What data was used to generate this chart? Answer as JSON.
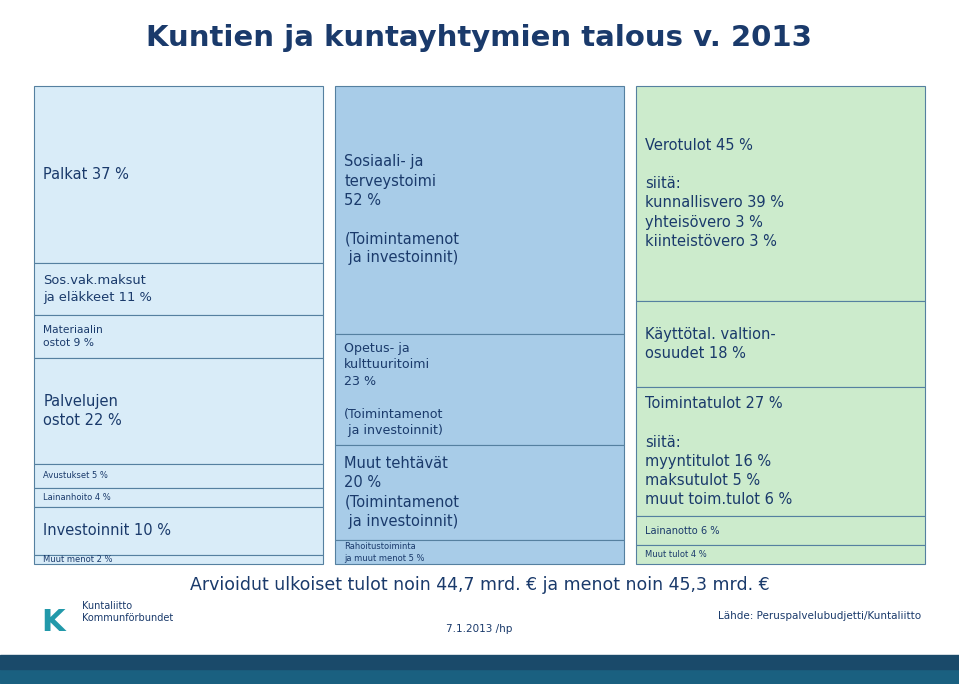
{
  "title": "Kuntien ja kuntayhtymien talous v. 2013",
  "title_color": "#1a3a6b",
  "bg_color": "#ffffff",
  "footer_text": "Arvioidut ulkoiset tulot noin 44,7 mrd. € ja menot noin 45,3 mrd. €",
  "footer_left": "Kuntaliitto\nKommunförbundet",
  "footer_center": "7.1.2013 /hp",
  "footer_right": "Lähde: Peruspalvelubudjetti/Kuntaliitto",
  "col1_color": "#d9ecf8",
  "col2_color": "#a8cce8",
  "col3_color": "#ccebcc",
  "border_color": "#5580a0",
  "text_color": "#1a3a6b",
  "bar_color": "#1a5276",
  "col1_items": [
    {
      "label": "Palkat 37 %",
      "weight": 37,
      "align": "left"
    },
    {
      "label": "Sos.vak.maksut\nja eläkkeet 11 %",
      "weight": 11,
      "align": "left"
    },
    {
      "label": "Materiaalin\nostot 9 %",
      "weight": 9,
      "align": "left"
    },
    {
      "label": "Palvelujen\nostot 22 %",
      "weight": 22,
      "align": "left"
    },
    {
      "label": "Avustukset 5 %",
      "weight": 5,
      "align": "left"
    },
    {
      "label": "Lainanhoito 4 %",
      "weight": 4,
      "align": "left"
    },
    {
      "label": "Investoinnit 10 %",
      "weight": 10,
      "align": "left"
    },
    {
      "label": "Muut menot 2 %",
      "weight": 2,
      "align": "left"
    }
  ],
  "col2_items": [
    {
      "label": "Sosiaali- ja\nterveystoimi\n52 %\n\n(Toimintamenot\n ja investoinnit)",
      "weight": 52,
      "align": "left"
    },
    {
      "label": "Opetus- ja\nkulttuuritoimi\n23 %\n\n(Toimintamenot\n ja investoinnit)",
      "weight": 23,
      "align": "left"
    },
    {
      "label": "Muut tehtävät\n20 %\n(Toimintamenot\n ja investoinnit)",
      "weight": 20,
      "align": "left"
    },
    {
      "label": "Rahoitustoiminta\nja muut menot 5 %",
      "weight": 5,
      "align": "left"
    }
  ],
  "col3_items": [
    {
      "label": "Verotulot 45 %\n\nsiitä:\nkunnallisvero 39 %\nyhteisövero 3 %\nkiinteistövero 3 %",
      "weight": 45,
      "align": "left"
    },
    {
      "label": "Käyttötal. valtion-\nosuudet 18 %",
      "weight": 18,
      "align": "left"
    },
    {
      "label": "Toimintatulot 27 %\n\nsiitä:\nmyyntitulot 16 %\nmaksutulot 5 %\nmuut toim.tulot 6 %",
      "weight": 27,
      "align": "left"
    },
    {
      "label": "Lainanotto 6 %",
      "weight": 6,
      "align": "left"
    },
    {
      "label": "Muut tulot 4 %",
      "weight": 4,
      "align": "left"
    }
  ]
}
